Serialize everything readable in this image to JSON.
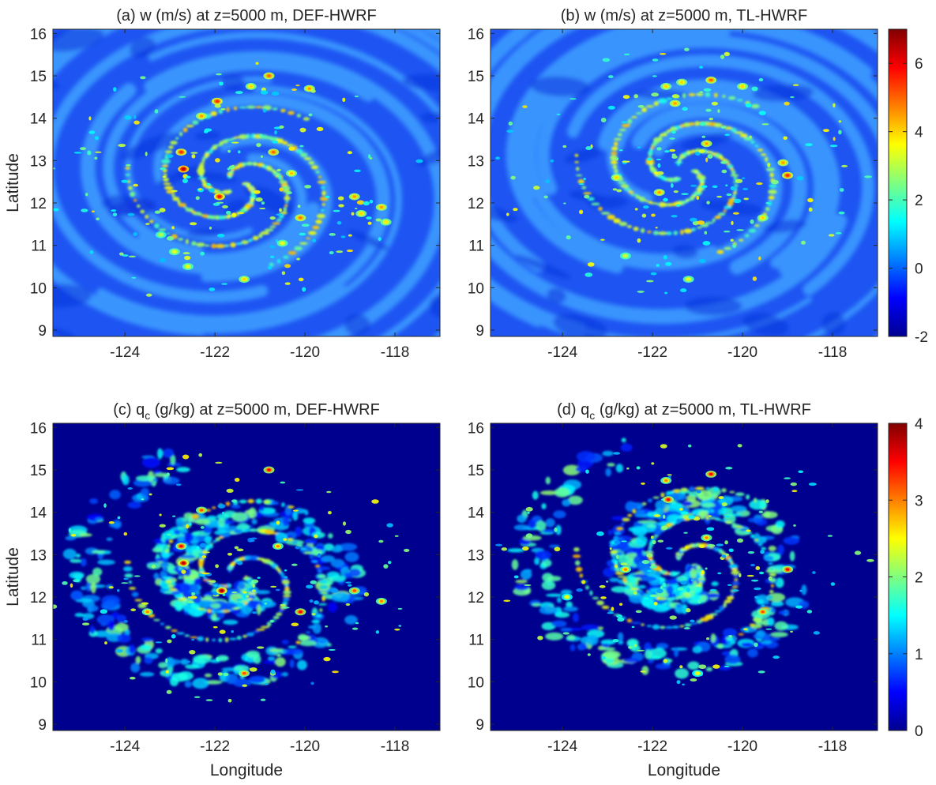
{
  "chart_data": {
    "type": "heatmap",
    "panels": [
      {
        "id": "a",
        "title": "(a) w (m/s) at z=5000 m, DEF-HWRF",
        "field": "w",
        "run": "DEF-HWRF",
        "xlabel": "",
        "ylabel": "Latitude",
        "xticks": [
          -124,
          -122,
          -120,
          -118
        ],
        "yticks": [
          9,
          10,
          11,
          12,
          13,
          14,
          15,
          16
        ],
        "xlim": [
          -125.6,
          -117.0
        ],
        "ylim": [
          8.85,
          16.1
        ],
        "colorbar": null,
        "center": [
          -121.55,
          12.45
        ],
        "features": [
          {
            "lon": -122.7,
            "lat": 12.8,
            "value": 6.5
          },
          {
            "lon": -122.75,
            "lat": 13.2,
            "value": 5.5
          },
          {
            "lon": -121.9,
            "lat": 12.15,
            "value": 5.8
          },
          {
            "lon": -122.3,
            "lat": 14.05,
            "value": 4.5
          },
          {
            "lon": -121.95,
            "lat": 14.4,
            "value": 5.5
          },
          {
            "lon": -120.8,
            "lat": 15.0,
            "value": 5.0
          },
          {
            "lon": -121.2,
            "lat": 14.75,
            "value": 4.0
          },
          {
            "lon": -119.9,
            "lat": 14.7,
            "value": 4.5
          },
          {
            "lon": -120.7,
            "lat": 13.2,
            "value": 5.0
          },
          {
            "lon": -120.3,
            "lat": 12.7,
            "value": 4.2
          },
          {
            "lon": -120.1,
            "lat": 11.65,
            "value": 4.8
          },
          {
            "lon": -120.5,
            "lat": 11.05,
            "value": 3.5
          },
          {
            "lon": -121.35,
            "lat": 10.2,
            "value": 4.0
          },
          {
            "lon": -122.6,
            "lat": 10.5,
            "value": 3.5
          },
          {
            "lon": -122.9,
            "lat": 10.85,
            "value": 3.5
          },
          {
            "lon": -123.2,
            "lat": 11.25,
            "value": 3.0
          },
          {
            "lon": -118.9,
            "lat": 12.15,
            "value": 4.5
          },
          {
            "lon": -118.75,
            "lat": 11.75,
            "value": 4.0
          },
          {
            "lon": -118.3,
            "lat": 11.9,
            "value": 4.5
          },
          {
            "lon": -118.2,
            "lat": 11.55,
            "value": 3.8
          }
        ]
      },
      {
        "id": "b",
        "title": "(b) w (m/s) at z=5000 m, TL-HWRF",
        "field": "w",
        "run": "TL-HWRF",
        "xlabel": "",
        "ylabel": "",
        "xticks": [
          -124,
          -122,
          -120,
          -118
        ],
        "yticks": [
          9,
          10,
          11,
          12,
          13,
          14,
          15,
          16
        ],
        "xlim": [
          -125.6,
          -117.0
        ],
        "ylim": [
          8.85,
          16.1
        ],
        "colorbar": {
          "min": -2,
          "max": 7,
          "ticks": [
            -2,
            0,
            2,
            4,
            6
          ]
        },
        "center": [
          -121.3,
          12.75
        ],
        "features": [
          {
            "lon": -120.8,
            "lat": 13.4,
            "value": 4.5
          },
          {
            "lon": -122.8,
            "lat": 12.6,
            "value": 4.0
          },
          {
            "lon": -121.85,
            "lat": 12.25,
            "value": 4.5
          },
          {
            "lon": -121.7,
            "lat": 14.75,
            "value": 4.0
          },
          {
            "lon": -120.7,
            "lat": 14.9,
            "value": 5.0
          },
          {
            "lon": -121.35,
            "lat": 14.85,
            "value": 4.0
          },
          {
            "lon": -121.5,
            "lat": 14.35,
            "value": 4.5
          },
          {
            "lon": -120.0,
            "lat": 14.75,
            "value": 4.0
          },
          {
            "lon": -119.0,
            "lat": 12.65,
            "value": 5.5
          },
          {
            "lon": -119.1,
            "lat": 12.95,
            "value": 4.5
          },
          {
            "lon": -119.55,
            "lat": 11.65,
            "value": 4.0
          },
          {
            "lon": -121.2,
            "lat": 10.2,
            "value": 3.5
          },
          {
            "lon": -122.6,
            "lat": 10.75,
            "value": 3.2
          }
        ]
      },
      {
        "id": "c",
        "title": "(c) q (g/kg) at z=5000 m, DEF-HWRF",
        "title_sub": "c",
        "field": "qc",
        "run": "DEF-HWRF",
        "xlabel": "Longitude",
        "ylabel": "Latitude",
        "xticks": [
          -124,
          -122,
          -120,
          -118
        ],
        "yticks": [
          9,
          10,
          11,
          12,
          13,
          14,
          15,
          16
        ],
        "xlim": [
          -125.6,
          -117.0
        ],
        "ylim": [
          8.85,
          16.1
        ],
        "colorbar": null,
        "center": [
          -121.55,
          12.45
        ],
        "features": [
          {
            "lon": -122.7,
            "lat": 12.8,
            "value": 3.8
          },
          {
            "lon": -122.75,
            "lat": 13.2,
            "value": 3.5
          },
          {
            "lon": -121.85,
            "lat": 12.15,
            "value": 3.9
          },
          {
            "lon": -123.5,
            "lat": 11.65,
            "value": 3.0
          },
          {
            "lon": -122.3,
            "lat": 14.05,
            "value": 3.2
          },
          {
            "lon": -120.8,
            "lat": 15.0,
            "value": 3.5
          },
          {
            "lon": -120.1,
            "lat": 11.65,
            "value": 3.5
          },
          {
            "lon": -120.6,
            "lat": 13.2,
            "value": 3.0
          },
          {
            "lon": -121.35,
            "lat": 10.2,
            "value": 3.2
          },
          {
            "lon": -118.9,
            "lat": 12.15,
            "value": 3.2
          },
          {
            "lon": -118.3,
            "lat": 11.9,
            "value": 3.0
          }
        ]
      },
      {
        "id": "d",
        "title": "(d) q (g/kg) at z=5000 m, TL-HWRF",
        "title_sub": "c",
        "field": "qc",
        "run": "TL-HWRF",
        "xlabel": "Longitude",
        "ylabel": "",
        "xticks": [
          -124,
          -122,
          -120,
          -118
        ],
        "yticks": [
          9,
          10,
          11,
          12,
          13,
          14,
          15,
          16
        ],
        "xlim": [
          -125.6,
          -117.0
        ],
        "ylim": [
          8.85,
          16.1
        ],
        "colorbar": {
          "min": 0,
          "max": 4,
          "ticks": [
            0,
            1,
            2,
            3,
            4
          ]
        },
        "center": [
          -121.3,
          12.75
        ],
        "features": [
          {
            "lon": -120.7,
            "lat": 14.9,
            "value": 3.5
          },
          {
            "lon": -121.65,
            "lat": 14.3,
            "value": 3.5
          },
          {
            "lon": -121.7,
            "lat": 14.75,
            "value": 3.0
          },
          {
            "lon": -119.0,
            "lat": 12.65,
            "value": 3.5
          },
          {
            "lon": -119.55,
            "lat": 11.65,
            "value": 3.2
          },
          {
            "lon": -120.8,
            "lat": 13.4,
            "value": 3.0
          },
          {
            "lon": -123.9,
            "lat": 12.0,
            "value": 2.5
          },
          {
            "lon": -121.0,
            "lat": 10.2,
            "value": 2.5
          },
          {
            "lon": -122.6,
            "lat": 12.65,
            "value": 3.0
          }
        ]
      }
    ]
  }
}
